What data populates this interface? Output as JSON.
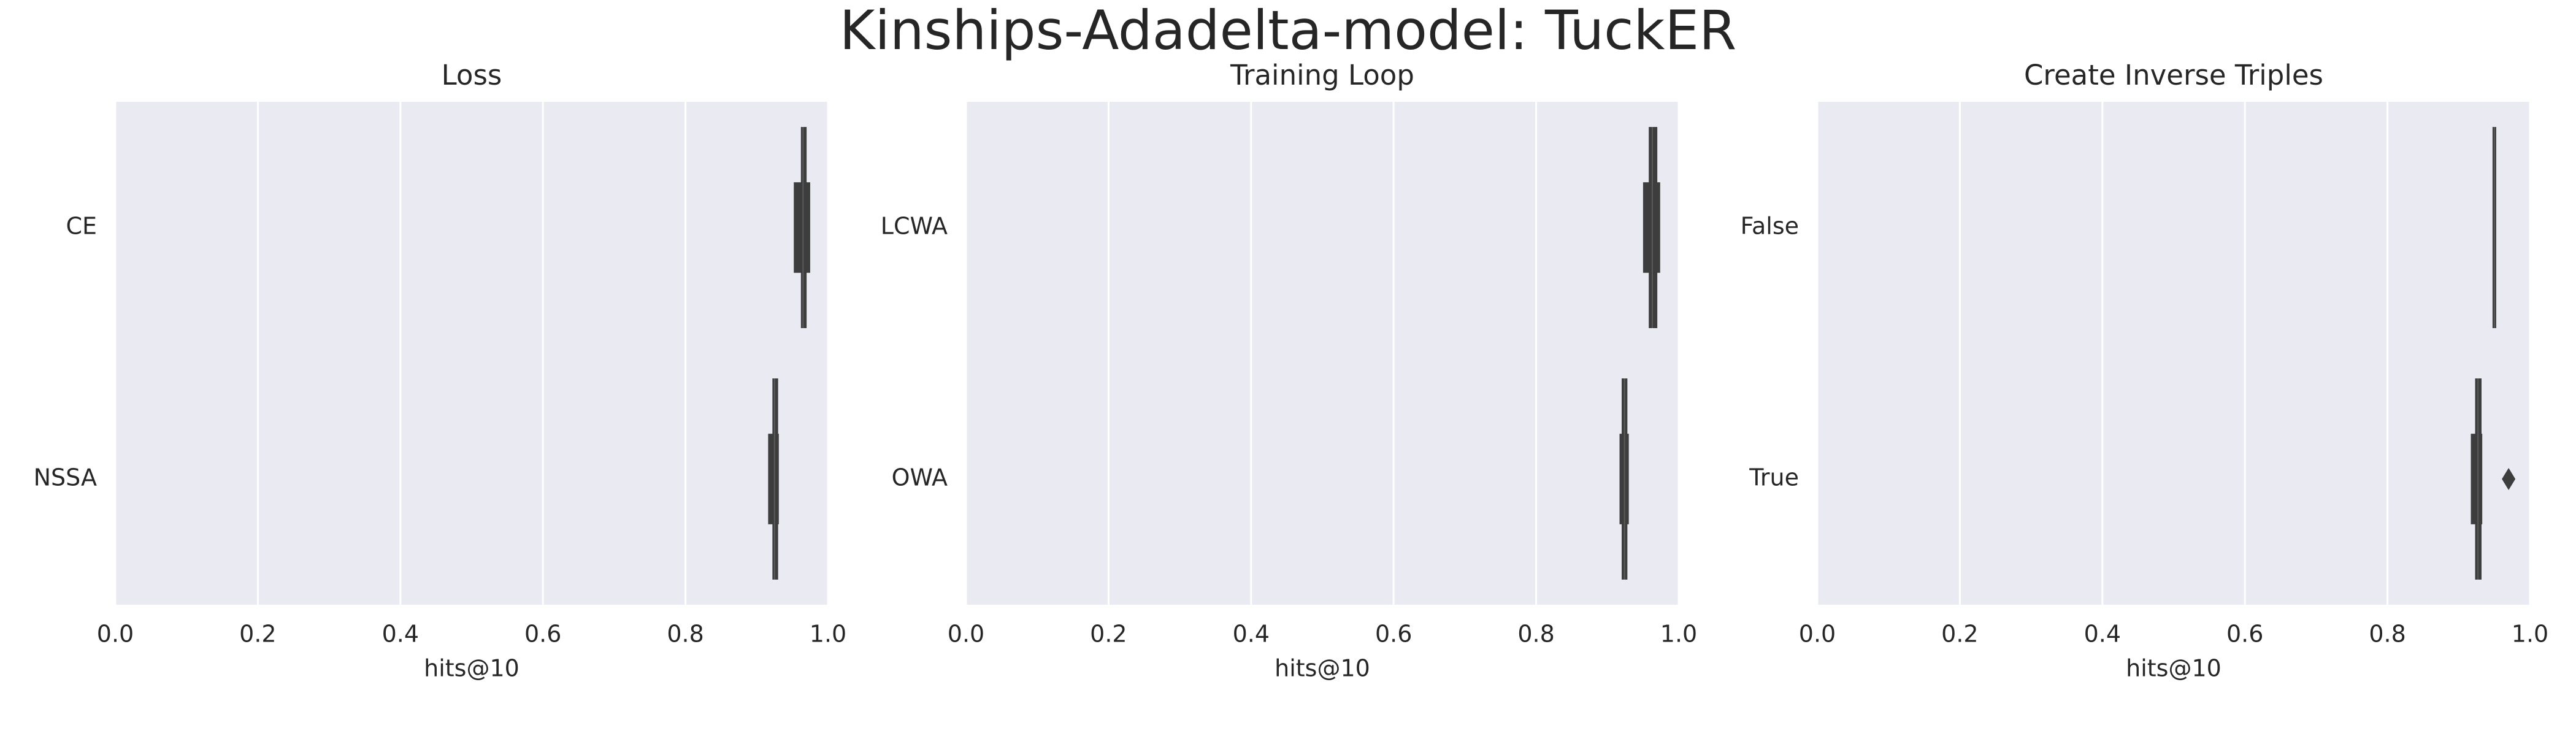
{
  "title": "Kinships-Adadelta-model: TuckER",
  "chart_data": [
    {
      "type": "boxen",
      "title": "Loss",
      "xlabel": "hits@10",
      "categories": [
        "CE",
        "NSSA"
      ],
      "boxes": [
        [
          [
            0.962,
            0.97
          ],
          [
            0.952,
            0.975
          ]
        ],
        [
          [
            0.922,
            0.93
          ],
          [
            0.916,
            0.931
          ]
        ]
      ],
      "medians": [
        0.965,
        0.925
      ],
      "outliers": [
        [],
        []
      ],
      "xlim": [
        0,
        1
      ],
      "xticks": [
        {
          "value": 0,
          "label": "0.0"
        },
        {
          "value": 0.2,
          "label": "0.2"
        },
        {
          "value": 0.4,
          "label": "0.4"
        },
        {
          "value": 0.6,
          "label": "0.6"
        },
        {
          "value": 0.8,
          "label": "0.8"
        },
        {
          "value": 1,
          "label": "1.0"
        }
      ],
      "grid": true,
      "color": "#3d3d3d"
    },
    {
      "type": "boxen",
      "title": "Training Loop",
      "xlabel": "hits@10",
      "categories": [
        "LCWA",
        "OWA"
      ],
      "boxes": [
        [
          [
            0.958,
            0.97
          ],
          [
            0.95,
            0.974
          ]
        ],
        [
          [
            0.92,
            0.928
          ],
          [
            0.917,
            0.93
          ]
        ]
      ],
      "medians": [
        0.963,
        0.924
      ],
      "outliers": [
        [],
        []
      ],
      "xlim": [
        0,
        1
      ],
      "xticks": [
        {
          "value": 0,
          "label": "0.0"
        },
        {
          "value": 0.2,
          "label": "0.2"
        },
        {
          "value": 0.4,
          "label": "0.4"
        },
        {
          "value": 0.6,
          "label": "0.6"
        },
        {
          "value": 0.8,
          "label": "0.8"
        },
        {
          "value": 1,
          "label": "1.0"
        }
      ],
      "grid": true,
      "color": "#3d3d3d"
    },
    {
      "type": "boxen",
      "title": "Create Inverse Triples",
      "xlabel": "hits@10",
      "categories": [
        "False",
        "True"
      ],
      "boxes": [
        [
          [
            0.949,
            0.951
          ]
        ],
        [
          [
            0.923,
            0.932
          ],
          [
            0.917,
            0.933
          ]
        ]
      ],
      "medians": [
        0.95,
        0.927
      ],
      "outliers": [
        [],
        [
          0.97
        ]
      ],
      "xlim": [
        0,
        1
      ],
      "xticks": [
        {
          "value": 0,
          "label": "0.0"
        },
        {
          "value": 0.2,
          "label": "0.2"
        },
        {
          "value": 0.4,
          "label": "0.4"
        },
        {
          "value": 0.6,
          "label": "0.6"
        },
        {
          "value": 0.8,
          "label": "0.8"
        },
        {
          "value": 1,
          "label": "1.0"
        }
      ],
      "grid": true,
      "color": "#3d3d3d"
    }
  ]
}
